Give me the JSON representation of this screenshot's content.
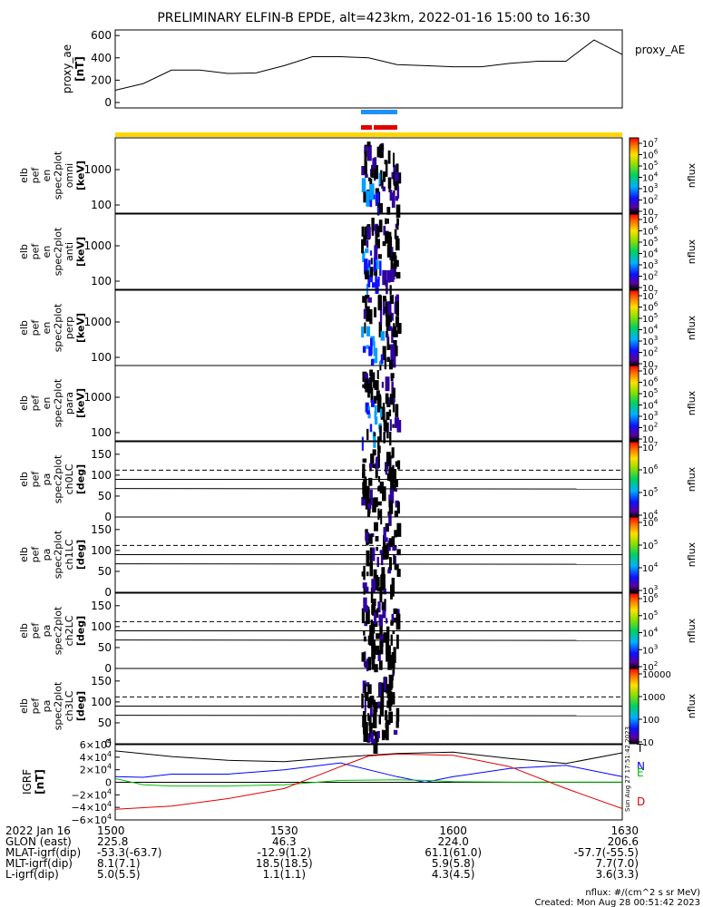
{
  "title": "PRELIMINARY ELFIN-B EPDE, alt=423km, 2022-01-16 15:00 to 16:30",
  "colors": {
    "yellow_bar": "#ffd700",
    "blue_bar": "#1e90ff",
    "red_bar": "#e00000",
    "trace_black": "#000000",
    "trace_blue": "#0000ff",
    "trace_green": "#00c000",
    "trace_red": "#e00000"
  },
  "panels": [
    {
      "id": "proxy-ae",
      "ylabel": [
        "proxy_ae",
        "[nT]"
      ],
      "yticks": [
        "600",
        "400",
        "200",
        "0"
      ],
      "right_label": "proxy_AE"
    },
    {
      "id": "omni",
      "ylabel": [
        "elb",
        "pef",
        "en",
        "spec2plot",
        "omni",
        "[keV]"
      ],
      "yticks": [
        "1000",
        "100"
      ],
      "cbar_ticks": [
        "10^7",
        "10^6",
        "10^5",
        "10^4",
        "10^3",
        "10^2",
        "10"
      ],
      "cbar_label": "nflux"
    },
    {
      "id": "anti",
      "ylabel": [
        "elb",
        "pef",
        "en",
        "spec2plot",
        "anti",
        "[keV]"
      ],
      "yticks": [
        "1000",
        "100"
      ],
      "cbar_ticks": [
        "10^7",
        "10^6",
        "10^5",
        "10^4",
        "10^3",
        "10^2",
        "10"
      ],
      "cbar_label": "nflux"
    },
    {
      "id": "perp",
      "ylabel": [
        "elb",
        "pef",
        "en",
        "spec2plot",
        "perp",
        "[keV]"
      ],
      "yticks": [
        "1000",
        "100"
      ],
      "cbar_ticks": [
        "10^7",
        "10^6",
        "10^5",
        "10^4",
        "10^3",
        "10^2",
        "10"
      ],
      "cbar_label": "nflux"
    },
    {
      "id": "para",
      "ylabel": [
        "elb",
        "pef",
        "en",
        "spec2plot",
        "para",
        "[keV]"
      ],
      "yticks": [
        "1000",
        "100"
      ],
      "cbar_ticks": [
        "10^7",
        "10^6",
        "10^5",
        "10^4",
        "10^3",
        "10^2",
        "10"
      ],
      "cbar_label": "nflux"
    },
    {
      "id": "ch0LC",
      "ylabel": [
        "elb",
        "pef",
        "pa",
        "spec2plot",
        "ch0LC",
        "[deg]"
      ],
      "yticks": [
        "150",
        "100",
        "50",
        "0"
      ],
      "cbar_ticks": [
        "10^7",
        "10^6",
        "10^5",
        "10^4"
      ],
      "cbar_label": "nflux"
    },
    {
      "id": "ch1LC",
      "ylabel": [
        "elb",
        "pef",
        "pa",
        "spec2plot",
        "ch1LC",
        "[deg]"
      ],
      "yticks": [
        "150",
        "100",
        "50",
        "0"
      ],
      "cbar_ticks": [
        "10^6",
        "10^5",
        "10^4",
        "10^3"
      ],
      "cbar_label": "nflux"
    },
    {
      "id": "ch2LC",
      "ylabel": [
        "elb",
        "pef",
        "pa",
        "spec2plot",
        "ch2LC",
        "[deg]"
      ],
      "yticks": [
        "150",
        "100",
        "50",
        "0"
      ],
      "cbar_ticks": [
        "10^6",
        "10^5",
        "10^4",
        "10^3",
        "10^2"
      ],
      "cbar_label": "nflux"
    },
    {
      "id": "ch3LC",
      "ylabel": [
        "elb",
        "pef",
        "pa",
        "spec2plot",
        "ch3LC",
        "[deg]"
      ],
      "yticks": [
        "150",
        "100",
        "50",
        "0"
      ],
      "cbar_ticks": [
        "10000",
        "1000",
        "100",
        "10"
      ],
      "cbar_label": "nflux"
    },
    {
      "id": "igrf",
      "ylabel": [
        "IGRF",
        "[nT]"
      ],
      "yticks": [
        "6×10^4",
        "4×10^4",
        "2×10^4",
        "0",
        "−2×10^4",
        "−4×10^4",
        "−6×10^4"
      ],
      "right_letters": [
        "T",
        "N",
        "E",
        "D"
      ]
    }
  ],
  "chart_data": {
    "type": "line",
    "x_ticks": [
      "1500",
      "1530",
      "1600",
      "1630"
    ],
    "proxy_ae": {
      "ylim": [
        0,
        650
      ],
      "t": [
        0,
        5,
        10,
        15,
        20,
        25,
        30,
        35,
        40,
        45,
        50,
        55,
        60,
        65,
        70,
        75,
        80,
        85,
        90
      ],
      "values": [
        110,
        170,
        290,
        290,
        260,
        265,
        330,
        410,
        410,
        400,
        340,
        330,
        320,
        320,
        350,
        370,
        370,
        560,
        430
      ]
    },
    "igrf": {
      "ylim": [
        -60000,
        60000
      ],
      "series": [
        {
          "name": "T",
          "t": [
            0,
            10,
            20,
            30,
            40,
            50,
            60,
            70,
            80,
            90
          ],
          "values": [
            50000,
            41000,
            35000,
            33000,
            40000,
            46000,
            48000,
            38000,
            30000,
            47000
          ]
        },
        {
          "name": "N",
          "t": [
            0,
            5,
            10,
            20,
            30,
            40,
            50,
            55,
            60,
            70,
            80,
            90
          ],
          "values": [
            9000,
            8000,
            13000,
            13000,
            20000,
            31000,
            9000,
            0,
            9000,
            22000,
            27000,
            9000
          ]
        },
        {
          "name": "E",
          "t": [
            0,
            5,
            10,
            20,
            30,
            40,
            50,
            55,
            60,
            70,
            80,
            90
          ],
          "values": [
            6000,
            -4000,
            -6000,
            -6000,
            -4000,
            3000,
            4000,
            3000,
            1000,
            500,
            500,
            500
          ]
        },
        {
          "name": "D",
          "t": [
            0,
            10,
            20,
            30,
            40,
            45,
            50,
            60,
            70,
            80,
            90
          ],
          "values": [
            -43000,
            -38000,
            -26000,
            -10000,
            25000,
            42000,
            45000,
            43000,
            25000,
            -10000,
            -42000
          ]
        }
      ]
    }
  },
  "footer": {
    "row_labels": [
      "2022 Jan 16",
      "GLON (east)",
      "MLAT-igrf(dip)",
      "MLT-igrf(dip)",
      "L-igrf(dip)"
    ],
    "columns": [
      [
        "1500",
        "225.8",
        "-53.3(-63.7)",
        "8.1(7.1)",
        "5.0(5.5)"
      ],
      [
        "1530",
        "46.3",
        "-12.9(1.2)",
        "18.5(18.5)",
        "1.1(1.1)"
      ],
      [
        "1600",
        "224.0",
        "61.1(61.0)",
        "5.9(5.8)",
        "4.3(4.5)"
      ],
      [
        "1630",
        "206.6",
        "-57.7(-55.5)",
        "7.7(7.0)",
        "3.6(3.3)"
      ]
    ],
    "side_text": "Sun Aug 27 17:51:42 2023",
    "nflux_units": "nflux: #/(cm^2 s sr MeV)",
    "created": "Created: Mon Aug 28 00:51:42 2023"
  }
}
